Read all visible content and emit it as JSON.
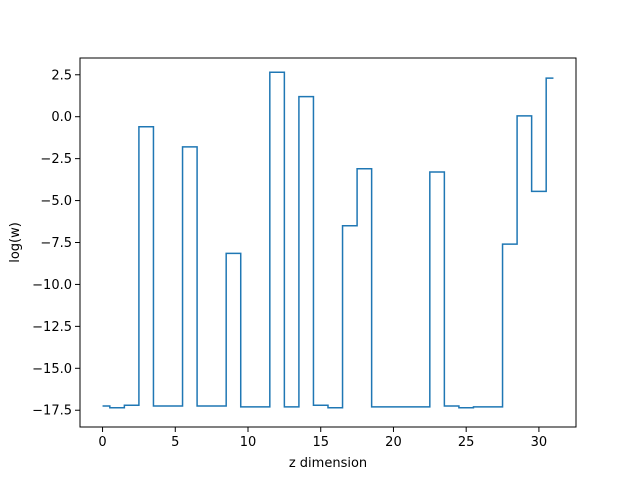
{
  "chart_data": {
    "type": "line",
    "drawstyle": "steps-mid",
    "title": "",
    "xlabel": "z dimension",
    "ylabel": "log(w)",
    "xlim": [
      -1.55,
      32.55
    ],
    "ylim": [
      -18.5,
      3.5
    ],
    "xticks": [
      0,
      5,
      10,
      15,
      20,
      25,
      30
    ],
    "xtick_labels": [
      "0",
      "5",
      "10",
      "15",
      "20",
      "25",
      "30"
    ],
    "yticks": [
      2.5,
      0.0,
      -2.5,
      -5.0,
      -7.5,
      -10.0,
      -12.5,
      -15.0,
      -17.5
    ],
    "ytick_labels": [
      "2.5",
      "0.0",
      "−2.5",
      "−5.0",
      "−7.5",
      "−10.0",
      "−12.5",
      "−15.0",
      "−17.5"
    ],
    "grid": false,
    "legend": "none",
    "series": [
      {
        "color": "#1f77b4",
        "x": [
          0,
          1,
          2,
          3,
          4,
          5,
          6,
          7,
          8,
          9,
          10,
          11,
          12,
          13,
          14,
          15,
          16,
          17,
          18,
          19,
          20,
          21,
          22,
          23,
          24,
          25,
          26,
          27,
          28,
          29,
          30,
          31
        ],
        "y": [
          -17.25,
          -17.35,
          -17.2,
          -0.6,
          -17.25,
          -17.25,
          -1.8,
          -17.25,
          -17.25,
          -8.15,
          -17.3,
          -17.3,
          2.65,
          -17.3,
          1.2,
          -17.2,
          -17.35,
          -6.5,
          -3.1,
          -17.3,
          -17.3,
          -17.3,
          -17.3,
          -3.3,
          -17.25,
          -17.35,
          -17.3,
          -17.3,
          -7.6,
          0.05,
          -4.45,
          2.3
        ]
      }
    ]
  }
}
